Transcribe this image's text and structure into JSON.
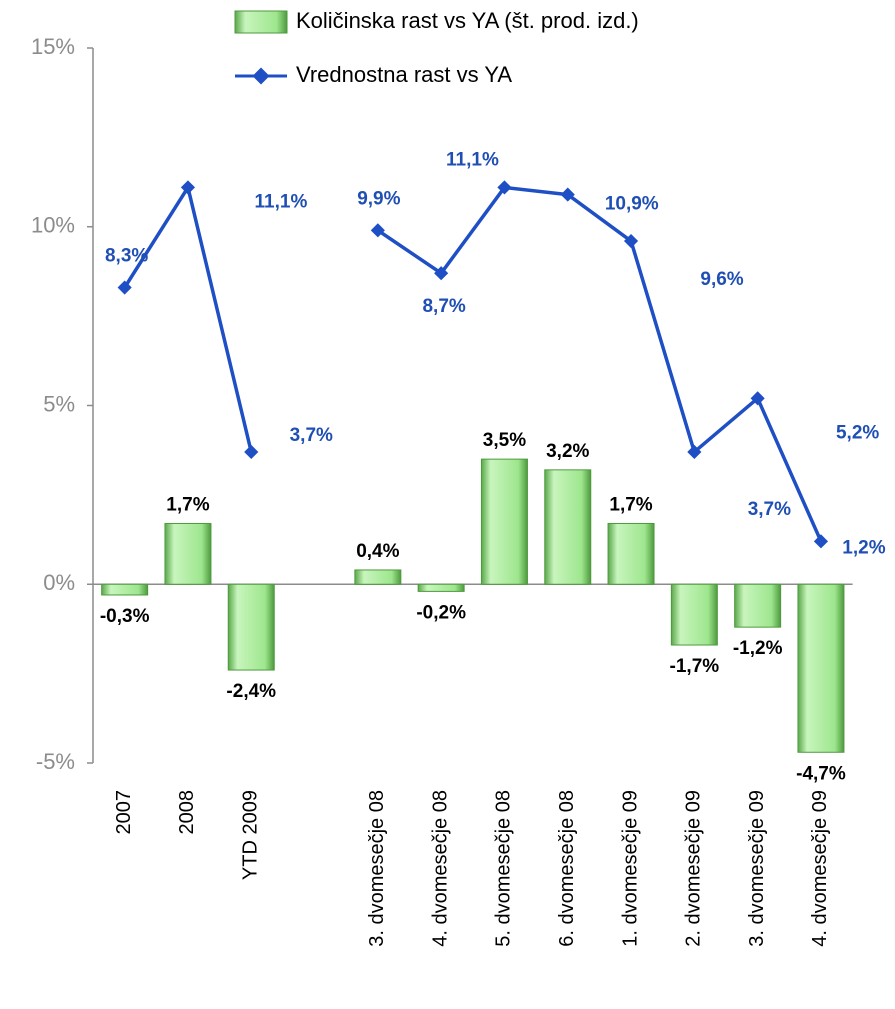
{
  "chart_data": {
    "type": "bar_line",
    "categories": [
      "2007",
      "2008",
      "YTD 2009",
      null,
      "3. dvomesečje 08",
      "4. dvomesečje 08",
      "5. dvomesečje 08",
      "6. dvomesečje 08",
      "1. dvomesečje 09",
      "2. dvomesečje 09",
      "3. dvomesečje 09",
      "4. dvomesečje 09"
    ],
    "series": [
      {
        "name": "Količinska rast vs YA (št. prod. izd.)",
        "type": "bar",
        "color": "#9ee68e",
        "values": [
          -0.3,
          1.7,
          -2.4,
          null,
          0.4,
          -0.2,
          3.5,
          3.2,
          1.7,
          -1.7,
          -1.2,
          -4.7
        ],
        "value_labels": [
          "-0,3%",
          "1,7%",
          "-2,4%",
          null,
          "0,4%",
          "-0,2%",
          "3,5%",
          "3,2%",
          "1,7%",
          "-1,7%",
          "-1,2%",
          "-4,7%"
        ]
      },
      {
        "name": "Vrednostna rast vs YA",
        "type": "line",
        "color": "#1f4fc4",
        "values": [
          8.3,
          11.1,
          3.7,
          null,
          9.9,
          8.7,
          11.1,
          10.9,
          9.6,
          3.7,
          5.2,
          1.2
        ],
        "value_labels": [
          "8,3%",
          "11,1%",
          "3,7%",
          null,
          "9,9%",
          "8,7%",
          "11,1%",
          "10,9%",
          "9,6%",
          "3,7%",
          "5,2%",
          "1,2%"
        ]
      }
    ],
    "ylim": [
      -5,
      15
    ],
    "yticks": [
      {
        "value": -5,
        "label": "-5%"
      },
      {
        "value": 0,
        "label": "0%"
      },
      {
        "value": 5,
        "label": "5%"
      },
      {
        "value": 10,
        "label": "10%"
      },
      {
        "value": 15,
        "label": "15%"
      }
    ]
  }
}
